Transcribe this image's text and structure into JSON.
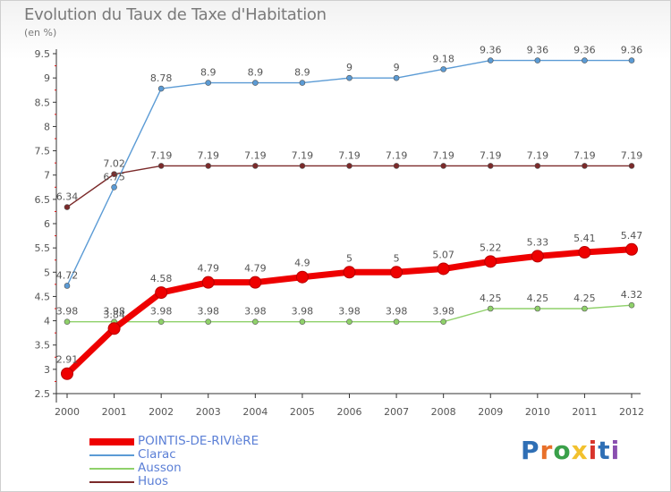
{
  "header": {
    "title": "Evolution du Taux de Taxe d'Habitation",
    "subtitle": "(en %)"
  },
  "logo": {
    "text": "Proxiti",
    "colors": [
      "#2f6fb5",
      "#e8702a",
      "#3aa04a",
      "#f2c12e",
      "#d8342c",
      "#2f6fb5",
      "#8a4fb0"
    ]
  },
  "chart_data": {
    "type": "line",
    "title": "Evolution du Taux de Taxe d'Habitation",
    "subtitle": "(en %)",
    "xlabel": "",
    "ylabel": "",
    "x": [
      "2000",
      "2001",
      "2002",
      "2003",
      "2004",
      "2005",
      "2006",
      "2007",
      "2008",
      "2009",
      "2010",
      "2011",
      "2012"
    ],
    "ylim": [
      2.5,
      9.5
    ],
    "yticks": [
      "2.5",
      "3",
      "3.5",
      "4",
      "4.5",
      "5",
      "5.5",
      "6",
      "6.5",
      "7",
      "7.5",
      "8",
      "8.5",
      "9",
      "9.5"
    ],
    "grid": false,
    "legend_position": "bottom-left",
    "series": [
      {
        "name": "POINTIS-DE-RIVIèRE",
        "color": "#ee0000",
        "emphasis": true,
        "values": [
          2.91,
          3.84,
          4.58,
          4.79,
          4.79,
          4.9,
          5,
          5,
          5.07,
          5.22,
          5.33,
          5.41,
          5.47
        ],
        "labels": [
          "2.91",
          "3.84",
          "4.58",
          "4.79",
          "4.79",
          "4.9",
          "5",
          "5",
          "5.07",
          "5.22",
          "5.33",
          "5.41",
          "5.47"
        ]
      },
      {
        "name": "Clarac",
        "color": "#5b9bd5",
        "values": [
          4.72,
          6.75,
          8.78,
          8.9,
          8.9,
          8.9,
          9,
          9,
          9.18,
          9.36,
          9.36,
          9.36,
          9.36
        ],
        "labels": [
          "4.72",
          "6.75",
          "8.78",
          "8.9",
          "8.9",
          "8.9",
          "9",
          "9",
          "9.18",
          "9.36",
          "9.36",
          "9.36",
          "9.36"
        ]
      },
      {
        "name": "Ausson",
        "color": "#8fd16a",
        "values": [
          3.98,
          3.98,
          3.98,
          3.98,
          3.98,
          3.98,
          3.98,
          3.98,
          3.98,
          4.25,
          4.25,
          4.25,
          4.32
        ],
        "labels": [
          "3.98",
          "3.98",
          "3.98",
          "3.98",
          "3.98",
          "3.98",
          "3.98",
          "3.98",
          "3.98",
          "4.25",
          "4.25",
          "4.25",
          "4.32"
        ]
      },
      {
        "name": "Huos",
        "color": "#7b2a2a",
        "values": [
          6.34,
          7.02,
          7.19,
          7.19,
          7.19,
          7.19,
          7.19,
          7.19,
          7.19,
          7.19,
          7.19,
          7.19,
          7.19
        ],
        "labels": [
          "6.34",
          "7.02",
          "7.19",
          "7.19",
          "7.19",
          "7.19",
          "7.19",
          "7.19",
          "7.19",
          "7.19",
          "7.19",
          "7.19",
          "7.19"
        ]
      }
    ]
  }
}
